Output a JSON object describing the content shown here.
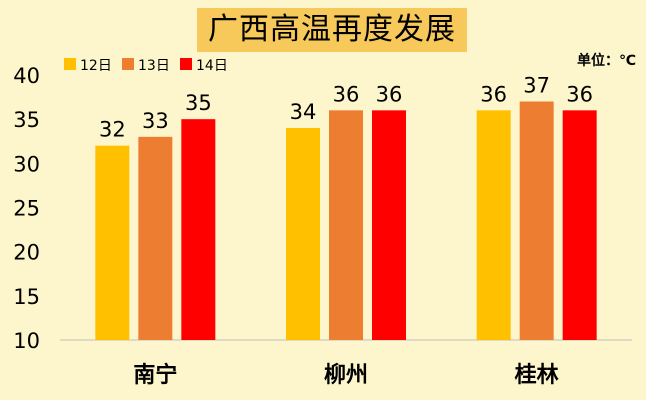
{
  "chart_data": {
    "type": "bar",
    "title": "广西高温再度发展",
    "unit": "单位：℃",
    "categories": [
      "南宁",
      "柳州",
      "桂林"
    ],
    "series": [
      {
        "name": "12日",
        "color": "#ffc000",
        "values": [
          32,
          34,
          36
        ]
      },
      {
        "name": "13日",
        "color": "#ed7d31",
        "values": [
          33,
          36,
          37
        ]
      },
      {
        "name": "14日",
        "color": "#ff0000",
        "values": [
          35,
          36,
          36
        ]
      }
    ],
    "ylim": [
      10,
      40
    ],
    "yticks": [
      10,
      15,
      20,
      25,
      30,
      35,
      40
    ],
    "grid": false,
    "legend": "top-left"
  }
}
